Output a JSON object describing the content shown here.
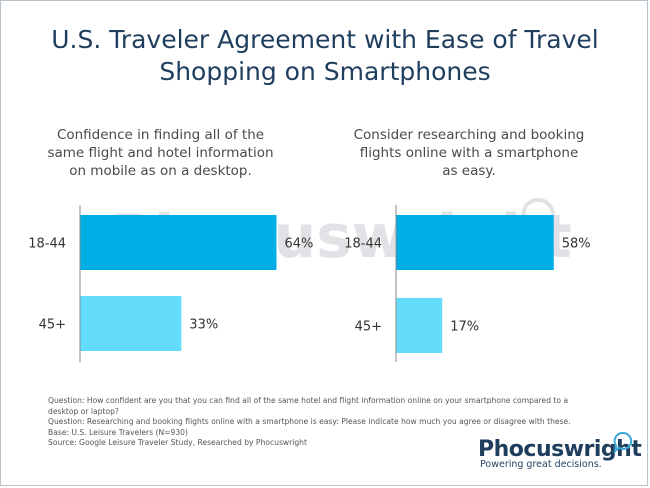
{
  "title_line1": "U.S. Traveler Agreement with Ease of Travel",
  "title_line2": "Shopping on Smartphones",
  "watermark": "Phocuswright",
  "chart_data": [
    {
      "type": "bar",
      "orientation": "horizontal",
      "title": [
        "Confidence in finding all of the",
        "same flight and hotel information",
        "on mobile as on a desktop."
      ],
      "categories": [
        "18-44",
        "45+"
      ],
      "values": [
        64,
        33
      ],
      "value_labels": [
        "64%",
        "33%"
      ],
      "colors": [
        "#00aee6",
        "#63dcfc"
      ],
      "xlim": [
        0,
        100
      ],
      "grid": false
    },
    {
      "type": "bar",
      "orientation": "horizontal",
      "title": [
        "Consider researching and booking",
        "flights online with a smartphone",
        "as easy."
      ],
      "categories": [
        "18-44",
        "45+"
      ],
      "values": [
        58,
        17
      ],
      "value_labels": [
        "58%",
        "17%"
      ],
      "colors": [
        "#00aee6",
        "#63dcfc"
      ],
      "xlim": [
        0,
        100
      ],
      "grid": false
    }
  ],
  "footnotes": [
    "Question: How confident are you that you can find all of the same hotel and flight information online on your smartphone compared to a",
    "desktop or laptop?",
    "Question: Researching and booking flights online with a smartphone is easy: Please indicate how much you agree or disagree with these.",
    "Base:  U.S. Leisure Travelers (N=930)",
    "Source: Google Leisure Traveler Study, Researched by Phocuswright"
  ],
  "logo": {
    "word": "Phocuswright",
    "tagline": "Powering great decisions."
  }
}
